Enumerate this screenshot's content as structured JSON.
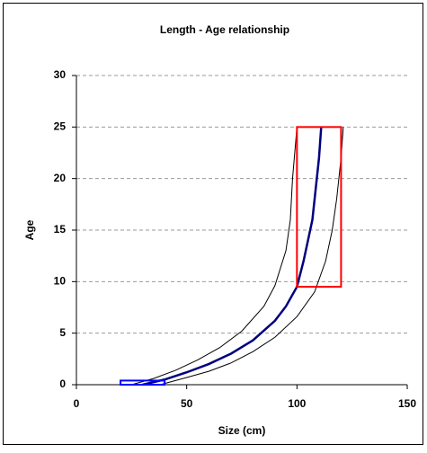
{
  "chart_data": {
    "type": "line",
    "title": "Length - Age relationship",
    "xlabel": "Size (cm)",
    "ylabel": "Age",
    "xlim": [
      0,
      150
    ],
    "xticks": [
      0,
      50,
      100,
      150
    ],
    "ylim": [
      0,
      30
    ],
    "yticks": [
      0,
      5,
      10,
      15,
      20,
      25,
      30
    ],
    "grid": true,
    "series": [
      {
        "color": "#000000",
        "width": 1,
        "x": [
          25,
          35,
          45,
          55,
          65,
          75,
          85,
          90,
          95,
          97,
          98,
          100
        ],
        "values": [
          0,
          0.6,
          1.4,
          2.4,
          3.6,
          5.2,
          7.6,
          9.6,
          13,
          16,
          20,
          25
        ]
      },
      {
        "color": "#000080",
        "width": 2.5,
        "x": [
          30,
          40,
          50,
          60,
          70,
          80,
          90,
          95,
          100,
          103,
          105,
          107,
          108,
          110,
          111
        ],
        "values": [
          0,
          0.5,
          1.2,
          2.0,
          3.0,
          4.3,
          6.2,
          7.6,
          9.5,
          12,
          14,
          16,
          18,
          22,
          25
        ]
      },
      {
        "color": "#000000",
        "width": 1,
        "x": [
          38,
          50,
          60,
          70,
          80,
          90,
          100,
          108,
          113,
          116,
          118,
          120,
          121
        ],
        "values": [
          0,
          0.7,
          1.3,
          2.1,
          3.2,
          4.6,
          6.6,
          9,
          12,
          15,
          18,
          22,
          25
        ]
      }
    ],
    "rectangles": [
      {
        "color": "#ff0000",
        "x": [
          100,
          120
        ],
        "y": [
          9.5,
          25
        ]
      },
      {
        "color": "#0000ff",
        "x": [
          20,
          40
        ],
        "y": [
          0,
          0.4
        ]
      }
    ]
  }
}
